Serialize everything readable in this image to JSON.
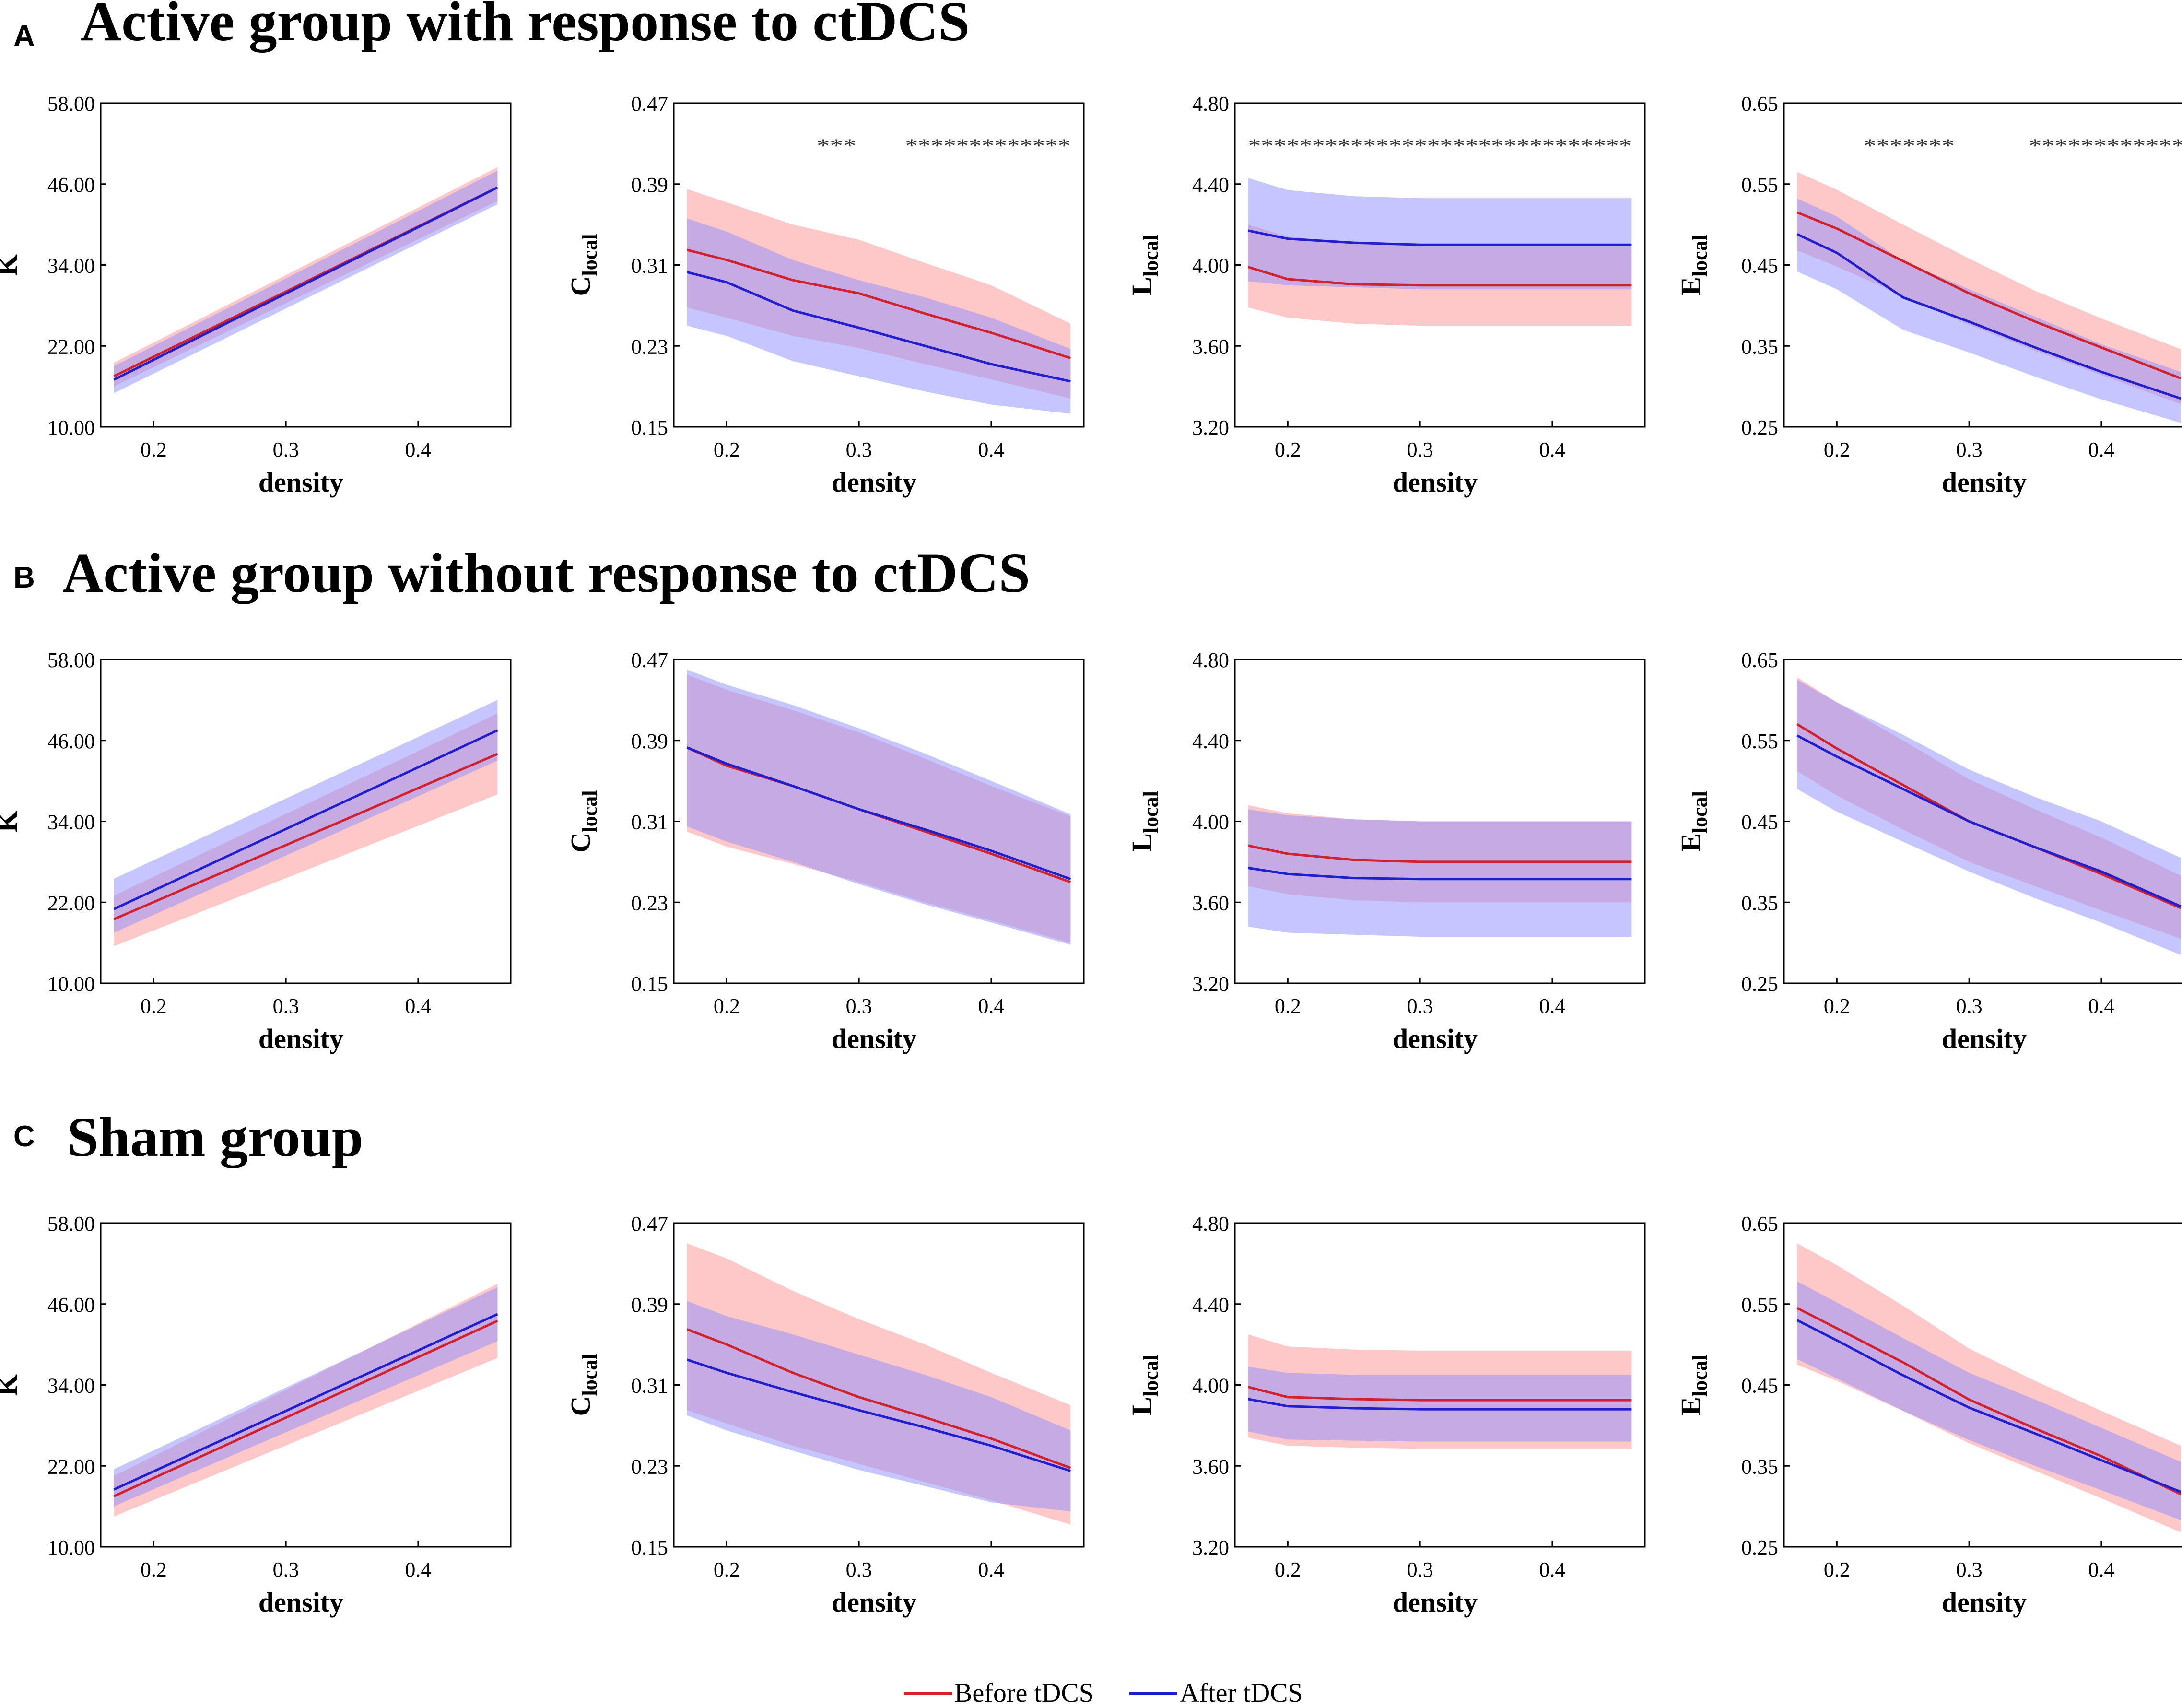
{
  "figure": {
    "legend": [
      {
        "label": "Before tDCS",
        "color": "#d4202a"
      },
      {
        "label": "After tDCS",
        "color": "#1f1fd0"
      }
    ],
    "band_colors": {
      "before": "#ff9a9a",
      "after": "#8c8cff"
    }
  },
  "panels": [
    {
      "letter": "A",
      "title": "Active group with response to ctDCS"
    },
    {
      "letter": "B",
      "title": "Active group without response to ctDCS"
    },
    {
      "letter": "C",
      "title": "Sham group"
    }
  ],
  "chart_data": [
    {
      "type": "line",
      "panel": "A",
      "metric": "K",
      "ylabel": "K",
      "ylabel_sub": "",
      "xlabel": "density",
      "xlim": [
        0.16,
        0.47
      ],
      "xticks": [
        "0.2",
        "0.3",
        "0.4"
      ],
      "ylim": [
        10,
        58
      ],
      "yticks": [
        "10.00",
        "22.00",
        "34.00",
        "46.00",
        "58.00"
      ],
      "x": [
        0.17,
        0.46
      ],
      "series": [
        {
          "name": "Before tDCS",
          "values": [
            17.5,
            45.5
          ],
          "lower": [
            16.0,
            43.5
          ],
          "upper": [
            19.5,
            48.5
          ]
        },
        {
          "name": "After tDCS",
          "values": [
            17.0,
            45.5
          ],
          "lower": [
            15.0,
            43.0
          ],
          "upper": [
            19.0,
            48.0
          ]
        }
      ],
      "sig_stars": []
    },
    {
      "type": "line",
      "panel": "A",
      "metric": "C_local",
      "ylabel": "C",
      "ylabel_sub": "local",
      "xlabel": "density",
      "xlim": [
        0.16,
        0.47
      ],
      "xticks": [
        "0.2",
        "0.3",
        "0.4"
      ],
      "ylim": [
        0.15,
        0.47
      ],
      "yticks": [
        "0.15",
        "0.23",
        "0.31",
        "0.39",
        "0.47"
      ],
      "x": [
        0.17,
        0.2,
        0.25,
        0.3,
        0.35,
        0.4,
        0.46
      ],
      "series": [
        {
          "name": "Before tDCS",
          "values": [
            0.325,
            0.315,
            0.295,
            0.282,
            0.262,
            0.243,
            0.218
          ],
          "lower": [
            0.268,
            0.258,
            0.24,
            0.228,
            0.212,
            0.197,
            0.178
          ],
          "upper": [
            0.385,
            0.372,
            0.35,
            0.335,
            0.312,
            0.29,
            0.252
          ]
        },
        {
          "name": "After tDCS",
          "values": [
            0.303,
            0.293,
            0.265,
            0.248,
            0.23,
            0.212,
            0.195
          ],
          "lower": [
            0.25,
            0.24,
            0.215,
            0.2,
            0.185,
            0.172,
            0.163
          ],
          "upper": [
            0.356,
            0.343,
            0.315,
            0.295,
            0.278,
            0.258,
            0.227
          ]
        }
      ],
      "sig_stars": [
        "***",
        "*************"
      ]
    },
    {
      "type": "line",
      "panel": "A",
      "metric": "L_local",
      "ylabel": "L",
      "ylabel_sub": "local",
      "xlabel": "density",
      "xlim": [
        0.16,
        0.47
      ],
      "xticks": [
        "0.2",
        "0.3",
        "0.4"
      ],
      "ylim": [
        3.2,
        4.8
      ],
      "yticks": [
        "3.20",
        "3.60",
        "4.00",
        "4.40",
        "4.80"
      ],
      "x": [
        0.17,
        0.2,
        0.25,
        0.3,
        0.35,
        0.4,
        0.46
      ],
      "series": [
        {
          "name": "Before tDCS",
          "values": [
            3.99,
            3.93,
            3.905,
            3.9,
            3.9,
            3.9,
            3.9
          ],
          "lower": [
            3.79,
            3.74,
            3.71,
            3.7,
            3.7,
            3.7,
            3.7
          ],
          "upper": [
            4.2,
            4.14,
            4.11,
            4.1,
            4.1,
            4.1,
            4.1
          ]
        },
        {
          "name": "After tDCS",
          "values": [
            4.17,
            4.13,
            4.11,
            4.1,
            4.1,
            4.1,
            4.1
          ],
          "lower": [
            3.92,
            3.9,
            3.89,
            3.88,
            3.88,
            3.88,
            3.88
          ],
          "upper": [
            4.43,
            4.37,
            4.34,
            4.33,
            4.33,
            4.33,
            4.33
          ]
        }
      ],
      "sig_stars": [
        "******************************"
      ]
    },
    {
      "type": "line",
      "panel": "A",
      "metric": "E_local",
      "ylabel": "E",
      "ylabel_sub": "local",
      "xlabel": "density",
      "xlim": [
        0.16,
        0.47
      ],
      "xticks": [
        "0.2",
        "0.3",
        "0.4"
      ],
      "ylim": [
        0.25,
        0.65
      ],
      "yticks": [
        "0.25",
        "0.35",
        "0.45",
        "0.55",
        "0.65"
      ],
      "x": [
        0.17,
        0.2,
        0.25,
        0.3,
        0.35,
        0.4,
        0.46
      ],
      "series": [
        {
          "name": "Before tDCS",
          "values": [
            0.515,
            0.495,
            0.455,
            0.415,
            0.38,
            0.348,
            0.31
          ],
          "lower": [
            0.468,
            0.448,
            0.412,
            0.376,
            0.344,
            0.314,
            0.278
          ],
          "upper": [
            0.565,
            0.543,
            0.5,
            0.458,
            0.418,
            0.384,
            0.346
          ]
        },
        {
          "name": "After tDCS",
          "values": [
            0.488,
            0.465,
            0.41,
            0.38,
            0.348,
            0.318,
            0.285
          ],
          "lower": [
            0.442,
            0.42,
            0.37,
            0.342,
            0.312,
            0.284,
            0.255
          ],
          "upper": [
            0.532,
            0.51,
            0.455,
            0.42,
            0.386,
            0.352,
            0.318
          ]
        }
      ],
      "sig_stars": [
        "*******",
        "************"
      ]
    },
    {
      "type": "line",
      "panel": "B",
      "metric": "K",
      "ylabel": "K",
      "ylabel_sub": "",
      "xlabel": "density",
      "xlim": [
        0.16,
        0.47
      ],
      "xticks": [
        "0.2",
        "0.3",
        "0.4"
      ],
      "ylim": [
        10,
        58
      ],
      "yticks": [
        "10.00",
        "22.00",
        "34.00",
        "46.00",
        "58.00"
      ],
      "x": [
        0.17,
        0.46
      ],
      "series": [
        {
          "name": "Before tDCS",
          "values": [
            19.5,
            44.0
          ],
          "lower": [
            15.5,
            38.0
          ],
          "upper": [
            23.0,
            50.0
          ]
        },
        {
          "name": "After tDCS",
          "values": [
            21.0,
            47.5
          ],
          "lower": [
            17.5,
            43.0
          ],
          "upper": [
            25.5,
            52.0
          ]
        }
      ],
      "sig_stars": []
    },
    {
      "type": "line",
      "panel": "B",
      "metric": "C_local",
      "ylabel": "C",
      "ylabel_sub": "local",
      "xlabel": "density",
      "xlim": [
        0.16,
        0.47
      ],
      "xticks": [
        "0.2",
        "0.3",
        "0.4"
      ],
      "ylim": [
        0.15,
        0.47
      ],
      "yticks": [
        "0.15",
        "0.23",
        "0.31",
        "0.39",
        "0.47"
      ],
      "x": [
        0.17,
        0.2,
        0.25,
        0.3,
        0.35,
        0.4,
        0.46
      ],
      "series": [
        {
          "name": "Before tDCS",
          "values": [
            0.383,
            0.365,
            0.345,
            0.322,
            0.3,
            0.278,
            0.25
          ],
          "lower": [
            0.3,
            0.285,
            0.268,
            0.25,
            0.23,
            0.212,
            0.19
          ],
          "upper": [
            0.455,
            0.44,
            0.42,
            0.398,
            0.372,
            0.345,
            0.315
          ]
        },
        {
          "name": "After tDCS",
          "values": [
            0.383,
            0.367,
            0.345,
            0.322,
            0.302,
            0.281,
            0.253
          ],
          "lower": [
            0.305,
            0.29,
            0.27,
            0.248,
            0.228,
            0.21,
            0.188
          ],
          "upper": [
            0.46,
            0.445,
            0.425,
            0.402,
            0.377,
            0.35,
            0.317
          ]
        }
      ],
      "sig_stars": []
    },
    {
      "type": "line",
      "panel": "B",
      "metric": "L_local",
      "ylabel": "L",
      "ylabel_sub": "local",
      "xlabel": "density",
      "xlim": [
        0.16,
        0.47
      ],
      "xticks": [
        "0.2",
        "0.3",
        "0.4"
      ],
      "ylim": [
        3.2,
        4.8
      ],
      "yticks": [
        "3.20",
        "3.60",
        "4.00",
        "4.40",
        "4.80"
      ],
      "x": [
        0.17,
        0.2,
        0.25,
        0.3,
        0.35,
        0.4,
        0.46
      ],
      "series": [
        {
          "name": "Before tDCS",
          "values": [
            3.88,
            3.84,
            3.81,
            3.8,
            3.8,
            3.8,
            3.8
          ],
          "lower": [
            3.68,
            3.64,
            3.61,
            3.6,
            3.6,
            3.6,
            3.6
          ],
          "upper": [
            4.08,
            4.04,
            4.01,
            4.0,
            4.0,
            4.0,
            4.0
          ]
        },
        {
          "name": "After tDCS",
          "values": [
            3.77,
            3.74,
            3.72,
            3.715,
            3.715,
            3.715,
            3.715
          ],
          "lower": [
            3.48,
            3.45,
            3.44,
            3.43,
            3.43,
            3.43,
            3.43
          ],
          "upper": [
            4.06,
            4.03,
            4.01,
            4.0,
            4.0,
            4.0,
            4.0
          ]
        }
      ],
      "sig_stars": []
    },
    {
      "type": "line",
      "panel": "B",
      "metric": "E_local",
      "ylabel": "E",
      "ylabel_sub": "local",
      "xlabel": "density",
      "xlim": [
        0.16,
        0.47
      ],
      "xticks": [
        "0.2",
        "0.3",
        "0.4"
      ],
      "ylim": [
        0.25,
        0.65
      ],
      "yticks": [
        "0.25",
        "0.35",
        "0.45",
        "0.55",
        "0.65"
      ],
      "x": [
        0.17,
        0.2,
        0.25,
        0.3,
        0.35,
        0.4,
        0.46
      ],
      "series": [
        {
          "name": "Before tDCS",
          "values": [
            0.57,
            0.54,
            0.495,
            0.45,
            0.418,
            0.385,
            0.343
          ],
          "lower": [
            0.512,
            0.482,
            0.44,
            0.4,
            0.37,
            0.34,
            0.305
          ],
          "upper": [
            0.628,
            0.597,
            0.55,
            0.502,
            0.465,
            0.43,
            0.383
          ]
        },
        {
          "name": "After tDCS",
          "values": [
            0.556,
            0.53,
            0.49,
            0.45,
            0.418,
            0.388,
            0.345
          ],
          "lower": [
            0.49,
            0.462,
            0.425,
            0.388,
            0.355,
            0.325,
            0.285
          ],
          "upper": [
            0.625,
            0.597,
            0.557,
            0.514,
            0.48,
            0.45,
            0.405
          ]
        }
      ],
      "sig_stars": []
    },
    {
      "type": "line",
      "panel": "C",
      "metric": "K",
      "ylabel": "K",
      "ylabel_sub": "",
      "xlabel": "density",
      "xlim": [
        0.16,
        0.47
      ],
      "xticks": [
        "0.2",
        "0.3",
        "0.4"
      ],
      "ylim": [
        10,
        58
      ],
      "yticks": [
        "10.00",
        "22.00",
        "34.00",
        "46.00",
        "58.00"
      ],
      "x": [
        0.17,
        0.46
      ],
      "series": [
        {
          "name": "Before tDCS",
          "values": [
            17.5,
            43.5
          ],
          "lower": [
            14.5,
            38.0
          ],
          "upper": [
            20.5,
            49.0
          ]
        },
        {
          "name": "After tDCS",
          "values": [
            18.5,
            44.5
          ],
          "lower": [
            16.0,
            40.5
          ],
          "upper": [
            21.5,
            48.5
          ]
        }
      ],
      "sig_stars": []
    },
    {
      "type": "line",
      "panel": "C",
      "metric": "C_local",
      "ylabel": "C",
      "ylabel_sub": "local",
      "xlabel": "density",
      "xlim": [
        0.16,
        0.47
      ],
      "xticks": [
        "0.2",
        "0.3",
        "0.4"
      ],
      "ylim": [
        0.15,
        0.47
      ],
      "yticks": [
        "0.15",
        "0.23",
        "0.31",
        "0.39",
        "0.47"
      ],
      "x": [
        0.17,
        0.2,
        0.25,
        0.3,
        0.35,
        0.4,
        0.46
      ],
      "series": [
        {
          "name": "Before tDCS",
          "values": [
            0.365,
            0.35,
            0.322,
            0.298,
            0.278,
            0.257,
            0.228
          ],
          "lower": [
            0.285,
            0.272,
            0.25,
            0.232,
            0.214,
            0.196,
            0.172
          ],
          "upper": [
            0.45,
            0.435,
            0.403,
            0.375,
            0.35,
            0.322,
            0.29
          ]
        },
        {
          "name": "After tDCS",
          "values": [
            0.335,
            0.322,
            0.303,
            0.285,
            0.268,
            0.25,
            0.225
          ],
          "lower": [
            0.28,
            0.265,
            0.245,
            0.226,
            0.21,
            0.194,
            0.185
          ],
          "upper": [
            0.393,
            0.378,
            0.36,
            0.34,
            0.32,
            0.298,
            0.265
          ]
        }
      ],
      "sig_stars": []
    },
    {
      "type": "line",
      "panel": "C",
      "metric": "L_local",
      "ylabel": "L",
      "ylabel_sub": "local",
      "xlabel": "density",
      "xlim": [
        0.16,
        0.47
      ],
      "xticks": [
        "0.2",
        "0.3",
        "0.4"
      ],
      "ylim": [
        3.2,
        4.8
      ],
      "yticks": [
        "3.20",
        "3.60",
        "4.00",
        "4.40",
        "4.80"
      ],
      "x": [
        0.17,
        0.2,
        0.25,
        0.3,
        0.35,
        0.4,
        0.46
      ],
      "series": [
        {
          "name": "Before tDCS",
          "values": [
            3.99,
            3.94,
            3.93,
            3.925,
            3.925,
            3.925,
            3.925
          ],
          "lower": [
            3.74,
            3.7,
            3.69,
            3.685,
            3.685,
            3.685,
            3.685
          ],
          "upper": [
            4.25,
            4.19,
            4.175,
            4.17,
            4.17,
            4.17,
            4.17
          ]
        },
        {
          "name": "After tDCS",
          "values": [
            3.93,
            3.895,
            3.885,
            3.88,
            3.88,
            3.88,
            3.88
          ],
          "lower": [
            3.77,
            3.73,
            3.725,
            3.72,
            3.72,
            3.72,
            3.72
          ],
          "upper": [
            4.09,
            4.06,
            4.05,
            4.05,
            4.05,
            4.05,
            4.05
          ]
        }
      ],
      "sig_stars": []
    },
    {
      "type": "line",
      "panel": "C",
      "metric": "E_local",
      "ylabel": "E",
      "ylabel_sub": "local",
      "xlabel": "density",
      "xlim": [
        0.16,
        0.47
      ],
      "xticks": [
        "0.2",
        "0.3",
        "0.4"
      ],
      "ylim": [
        0.25,
        0.65
      ],
      "yticks": [
        "0.25",
        "0.35",
        "0.45",
        "0.55",
        "0.65"
      ],
      "x": [
        0.17,
        0.2,
        0.25,
        0.3,
        0.35,
        0.4,
        0.46
      ],
      "series": [
        {
          "name": "Before tDCS",
          "values": [
            0.545,
            0.52,
            0.478,
            0.432,
            0.396,
            0.362,
            0.315
          ],
          "lower": [
            0.475,
            0.455,
            0.418,
            0.378,
            0.344,
            0.31,
            0.268
          ],
          "upper": [
            0.625,
            0.598,
            0.548,
            0.495,
            0.455,
            0.418,
            0.375
          ]
        },
        {
          "name": "After tDCS",
          "values": [
            0.53,
            0.505,
            0.462,
            0.422,
            0.39,
            0.357,
            0.318
          ],
          "lower": [
            0.482,
            0.458,
            0.418,
            0.382,
            0.35,
            0.32,
            0.283
          ],
          "upper": [
            0.578,
            0.552,
            0.508,
            0.465,
            0.432,
            0.397,
            0.355
          ]
        }
      ],
      "sig_stars": []
    }
  ]
}
